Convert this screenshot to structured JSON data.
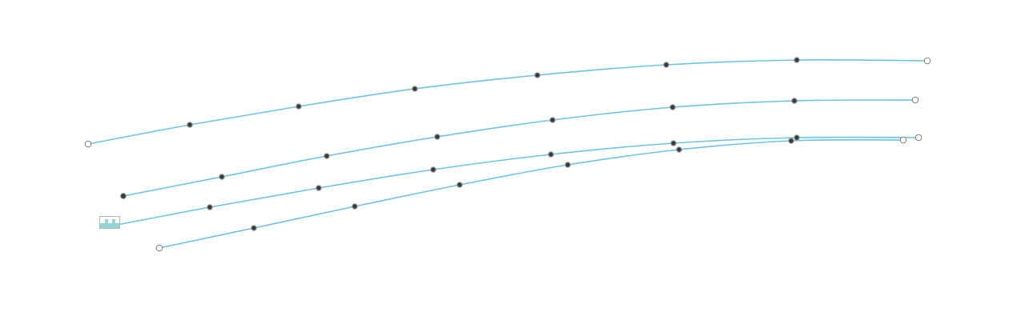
{
  "colors": {
    "curve": "#6ac4e8",
    "node_fill": "#3a3a3a",
    "node_hollow_stroke": "#7a7a7a",
    "handle_accent": "#8fd6d4"
  },
  "icons": {
    "handle": "resize-handle-icon"
  }
}
